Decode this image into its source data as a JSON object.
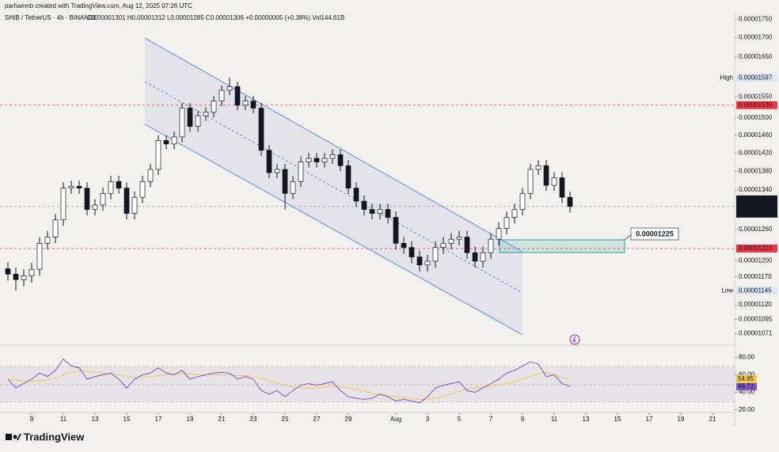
{
  "header": {
    "attribution": "parhamnb created with TradingView.com, Aug 12, 2025 07:26 UTC",
    "symbol": "SHIB / TetherUS · 4h · BINANCE",
    "ohlc": "O0.00001301 H0.00001312 L0.00001285 C0.00001306 +0.00000005 (+0.38%) Vol144.61B"
  },
  "logo": "TradingView",
  "chart_data": [
    {
      "type": "candlestick",
      "log": true,
      "grid": false,
      "up_color": "#ffffff",
      "down_color": "#131722",
      "xlim": [
        -2,
        44.4
      ],
      "ylim": [
        1.053e-05,
        1.77e-05
      ],
      "xticks": [
        {
          "value": 0,
          "label": "9"
        },
        {
          "value": 2,
          "label": "11"
        },
        {
          "value": 4,
          "label": "13"
        },
        {
          "value": 6,
          "label": "15"
        },
        {
          "value": 8,
          "label": "17"
        },
        {
          "value": 10,
          "label": "19"
        },
        {
          "value": 12,
          "label": "21"
        },
        {
          "value": 14,
          "label": "23"
        },
        {
          "value": 16,
          "label": "25"
        },
        {
          "value": 18,
          "label": "27"
        },
        {
          "value": 20,
          "label": "29"
        },
        {
          "value": 23,
          "label": "Aug"
        },
        {
          "value": 25,
          "label": "3"
        },
        {
          "value": 27,
          "label": "5"
        },
        {
          "value": 29,
          "label": "7"
        },
        {
          "value": 31,
          "label": "9"
        },
        {
          "value": 33,
          "label": "11"
        },
        {
          "value": 35,
          "label": "13"
        },
        {
          "value": 37,
          "label": "15"
        },
        {
          "value": 39,
          "label": "17"
        },
        {
          "value": 41,
          "label": "19"
        },
        {
          "value": 43,
          "label": "21"
        }
      ],
      "yticks": [
        {
          "value": 1.75e-05,
          "label": "0.00001750"
        },
        {
          "value": 1.7e-05,
          "label": "0.00001700"
        },
        {
          "value": 1.65e-05,
          "label": "0.00001650"
        },
        {
          "value": 1.55e-05,
          "label": "0.00001550"
        },
        {
          "value": 1.5e-05,
          "label": "0.00001500"
        },
        {
          "value": 1.46e-05,
          "label": "0.00001460"
        },
        {
          "value": 1.42e-05,
          "label": "0.00001420"
        },
        {
          "value": 1.38e-05,
          "label": "0.00001380"
        },
        {
          "value": 1.34e-05,
          "label": "0.00001340"
        },
        {
          "value": 1.26e-05,
          "label": "0.00001260"
        },
        {
          "value": 1.2e-05,
          "label": "0.00001200"
        },
        {
          "value": 1.17e-05,
          "label": "0.00001170"
        },
        {
          "value": 1.12e-05,
          "label": "0.00001120"
        },
        {
          "value": 1.095e-05,
          "label": "0.00001095"
        },
        {
          "value": 1.071e-05,
          "label": "0.00001071"
        }
      ],
      "x": [
        -1.5,
        -1,
        -0.5,
        0,
        0.5,
        1,
        1.5,
        2,
        2.5,
        3,
        3.5,
        4,
        4.5,
        5,
        5.5,
        6,
        6.5,
        7,
        7.5,
        8,
        8.5,
        9,
        9.5,
        10,
        10.5,
        11,
        11.5,
        12,
        12.5,
        13,
        13.5,
        14,
        14.5,
        15,
        15.5,
        16,
        16.5,
        17,
        17.5,
        18,
        18.5,
        19,
        19.5,
        20,
        20.5,
        21,
        21.5,
        22,
        22.5,
        23,
        23.5,
        24,
        24.5,
        25,
        25.5,
        26,
        26.5,
        27,
        27.5,
        28,
        28.5,
        29,
        29.5,
        30,
        30.5,
        31,
        31.5,
        32,
        32.5,
        33,
        33.5,
        34
      ],
      "open": [
        1.185e-05,
        1.175e-05,
        1.165e-05,
        1.172e-05,
        1.184e-05,
        1.233e-05,
        1.245e-05,
        1.279e-05,
        1.344e-05,
        1.348e-05,
        1.344e-05,
        1.3e-05,
        1.309e-05,
        1.333e-05,
        1.358e-05,
        1.344e-05,
        1.292e-05,
        1.325e-05,
        1.358e-05,
        1.384e-05,
        1.448e-05,
        1.44e-05,
        1.456e-05,
        1.523e-05,
        1.48e-05,
        1.505e-05,
        1.513e-05,
        1.54e-05,
        1.566e-05,
        1.575e-05,
        1.53e-05,
        1.54e-05,
        1.523e-05,
        1.426e-05,
        1.377e-05,
        1.384e-05,
        1.333e-05,
        1.358e-05,
        1.4e-05,
        1.408e-05,
        1.4e-05,
        1.408e-05,
        1.416e-05,
        1.392e-05,
        1.344e-05,
        1.317e-05,
        1.3e-05,
        1.292e-05,
        1.3e-05,
        1.284e-05,
        1.233e-05,
        1.225e-05,
        1.207e-05,
        1.192e-05,
        1.199e-05,
        1.225e-05,
        1.233e-05,
        1.241e-05,
        1.245e-05,
        1.215e-05,
        1.199e-05,
        1.215e-05,
        1.241e-05,
        1.262e-05,
        1.284e-05,
        1.3e-05,
        1.333e-05,
        1.384e-05,
        1.392e-05,
        1.35e-05,
        1.366e-05,
        1.325e-05
      ],
      "high": [
        1.197e-05,
        1.187e-05,
        1.184e-05,
        1.196e-05,
        1.245e-05,
        1.257e-05,
        1.291e-05,
        1.356e-05,
        1.36e-05,
        1.36e-05,
        1.356e-05,
        1.321e-05,
        1.345e-05,
        1.37e-05,
        1.37e-05,
        1.356e-05,
        1.337e-05,
        1.37e-05,
        1.396e-05,
        1.46e-05,
        1.46e-05,
        1.468e-05,
        1.535e-05,
        1.535e-05,
        1.517e-05,
        1.525e-05,
        1.552e-05,
        1.578e-05,
        1.597e-05,
        1.587e-05,
        1.552e-05,
        1.552e-05,
        1.535e-05,
        1.438e-05,
        1.396e-05,
        1.396e-05,
        1.37e-05,
        1.412e-05,
        1.42e-05,
        1.42e-05,
        1.42e-05,
        1.428e-05,
        1.428e-05,
        1.404e-05,
        1.356e-05,
        1.329e-05,
        1.312e-05,
        1.312e-05,
        1.312e-05,
        1.296e-05,
        1.245e-05,
        1.237e-05,
        1.219e-05,
        1.211e-05,
        1.237e-05,
        1.245e-05,
        1.253e-05,
        1.257e-05,
        1.257e-05,
        1.227e-05,
        1.227e-05,
        1.253e-05,
        1.274e-05,
        1.296e-05,
        1.312e-05,
        1.345e-05,
        1.396e-05,
        1.404e-05,
        1.404e-05,
        1.378e-05,
        1.378e-05,
        1.337e-05
      ],
      "low": [
        1.163e-05,
        1.145e-05,
        1.153e-05,
        1.16e-05,
        1.172e-05,
        1.221e-05,
        1.233e-05,
        1.267e-05,
        1.332e-05,
        1.332e-05,
        1.288e-05,
        1.288e-05,
        1.297e-05,
        1.321e-05,
        1.332e-05,
        1.28e-05,
        1.28e-05,
        1.313e-05,
        1.346e-05,
        1.372e-05,
        1.428e-05,
        1.428e-05,
        1.444e-05,
        1.468e-05,
        1.468e-05,
        1.493e-05,
        1.501e-05,
        1.528e-05,
        1.554e-05,
        1.518e-05,
        1.518e-05,
        1.511e-05,
        1.414e-05,
        1.365e-05,
        1.365e-05,
        1.3e-05,
        1.321e-05,
        1.346e-05,
        1.388e-05,
        1.388e-05,
        1.388e-05,
        1.396e-05,
        1.38e-05,
        1.332e-05,
        1.305e-05,
        1.288e-05,
        1.28e-05,
        1.28e-05,
        1.272e-05,
        1.221e-05,
        1.213e-05,
        1.195e-05,
        1.18e-05,
        1.18e-05,
        1.187e-05,
        1.213e-05,
        1.221e-05,
        1.229e-05,
        1.203e-05,
        1.187e-05,
        1.187e-05,
        1.203e-05,
        1.229e-05,
        1.25e-05,
        1.272e-05,
        1.288e-05,
        1.321e-05,
        1.372e-05,
        1.338e-05,
        1.338e-05,
        1.313e-05,
        1.294e-05
      ],
      "close": [
        1.175e-05,
        1.165e-05,
        1.172e-05,
        1.184e-05,
        1.233e-05,
        1.245e-05,
        1.279e-05,
        1.344e-05,
        1.348e-05,
        1.344e-05,
        1.3e-05,
        1.309e-05,
        1.333e-05,
        1.358e-05,
        1.344e-05,
        1.292e-05,
        1.325e-05,
        1.358e-05,
        1.384e-05,
        1.448e-05,
        1.44e-05,
        1.456e-05,
        1.523e-05,
        1.48e-05,
        1.505e-05,
        1.513e-05,
        1.54e-05,
        1.566e-05,
        1.575e-05,
        1.53e-05,
        1.54e-05,
        1.523e-05,
        1.426e-05,
        1.377e-05,
        1.384e-05,
        1.333e-05,
        1.358e-05,
        1.4e-05,
        1.408e-05,
        1.4e-05,
        1.408e-05,
        1.416e-05,
        1.392e-05,
        1.344e-05,
        1.317e-05,
        1.3e-05,
        1.292e-05,
        1.3e-05,
        1.284e-05,
        1.233e-05,
        1.225e-05,
        1.207e-05,
        1.192e-05,
        1.199e-05,
        1.225e-05,
        1.233e-05,
        1.241e-05,
        1.245e-05,
        1.215e-05,
        1.199e-05,
        1.215e-05,
        1.241e-05,
        1.262e-05,
        1.284e-05,
        1.3e-05,
        1.333e-05,
        1.384e-05,
        1.392e-05,
        1.35e-05,
        1.366e-05,
        1.325e-05,
        1.306e-05
      ],
      "markers": [
        {
          "name": "High",
          "value": 1.597e-05,
          "color": "#dbe6fb",
          "text_color": "#2962ff"
        },
        {
          "value": 1.53e-05,
          "label": "0.00001530",
          "color": "#f23645",
          "text_color": "#ffffff",
          "line": true
        },
        {
          "value": 1.306e-05,
          "color": "#131722",
          "text_color": "#ffffff",
          "line": true
        },
        {
          "value": 1.293e-05,
          "color": "#131722",
          "text_color": "#ffffff"
        },
        {
          "value": 1.223e-05,
          "color": "#f23645",
          "text_color": "#ffffff",
          "line": true
        },
        {
          "name": "Low",
          "value": 1.145e-05,
          "color": "#dbe6fb",
          "text_color": "#2962ff"
        }
      ],
      "countdown": "33:11",
      "annotation": {
        "value": 1.225e-05
      }
    },
    {
      "type": "line",
      "ylim": [
        17,
        93
      ],
      "yticks": [
        {
          "value": 80,
          "label": "80.00"
        },
        {
          "value": 60,
          "label": "60.00"
        },
        {
          "value": 40,
          "label": "40.00"
        },
        {
          "value": 20,
          "label": "20.00"
        }
      ],
      "x": [
        -1.5,
        -1,
        -0.5,
        0,
        0.5,
        1,
        1.5,
        2,
        2.5,
        3,
        3.5,
        4,
        4.5,
        5,
        5.5,
        6,
        6.5,
        7,
        7.5,
        8,
        8.5,
        9,
        9.5,
        10,
        10.5,
        11,
        11.5,
        12,
        12.5,
        13,
        13.5,
        14,
        14.5,
        15,
        15.5,
        16,
        16.5,
        17,
        17.5,
        18,
        18.5,
        19,
        19.5,
        20,
        20.5,
        21,
        21.5,
        22,
        22.5,
        23,
        23.5,
        24,
        24.5,
        25,
        25.5,
        26,
        26.5,
        27,
        27.5,
        28,
        28.5,
        29,
        29.5,
        30,
        30.5,
        31,
        31.5,
        32,
        32.5,
        33,
        33.5,
        34
      ],
      "series": [
        {
          "color": "#7e57c2",
          "label_color": "#7e57c2",
          "values": [
            55,
            45,
            50,
            55,
            62,
            58,
            65,
            78,
            70,
            68,
            55,
            58,
            60,
            62,
            55,
            45,
            55,
            60,
            62,
            68,
            62,
            60,
            65,
            55,
            58,
            60,
            62,
            63,
            62,
            55,
            58,
            55,
            42,
            38,
            42,
            35,
            42,
            48,
            50,
            48,
            50,
            52,
            42,
            35,
            33,
            32,
            33,
            38,
            35,
            30,
            32,
            30,
            28,
            35,
            45,
            48,
            50,
            52,
            42,
            40,
            45,
            50,
            55,
            62,
            65,
            70,
            75,
            72,
            58,
            60,
            50,
            46.72
          ]
        },
        {
          "color": "#f7c948",
          "label_color": "#f7c948",
          "values": [
            55,
            54,
            53,
            52,
            53,
            54,
            56,
            60,
            63,
            65,
            64,
            63,
            62,
            61,
            60,
            58,
            57,
            57,
            58,
            59,
            60,
            61,
            61,
            61,
            60,
            60,
            60,
            60,
            60,
            59,
            59,
            58,
            56,
            53,
            51,
            48,
            46,
            45,
            45,
            45,
            46,
            47,
            46,
            45,
            43,
            41,
            39,
            37,
            36,
            35,
            34,
            33,
            32,
            32,
            33,
            35,
            38,
            41,
            44,
            45,
            46,
            47,
            48,
            50,
            52,
            55,
            58,
            61,
            63,
            60,
            57,
            54.95
          ]
        }
      ]
    }
  ]
}
